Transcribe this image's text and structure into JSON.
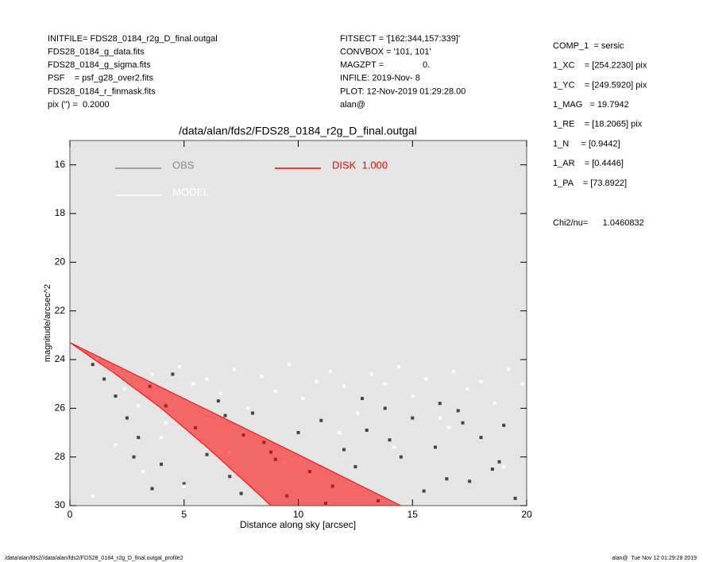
{
  "header": {
    "left": [
      "INITFILE= FDS28_0184_r2g_D_final.outgal",
      "FDS28_0184_g_data.fits",
      "FDS28_0184_g_sigma.fits",
      "PSF    = psf_g28_over2.fits",
      "FDS28_0184_r_finmask.fits",
      "pix (\") =  0.2000"
    ],
    "middle": [
      "FITSECT = '[162:344,157:339]'",
      "CONVBOX = '101, 101'",
      "MAGZPT =                0.",
      "INFILE: 2019-Nov- 8",
      "PLOT: 12-Nov-2019 01:29:28.00",
      "alan@"
    ],
    "right": [
      "COMP_1  = sersic",
      "1_XC    = [254.2230] pix",
      "1_YC    = [249.5920] pix",
      "1_MAG   = 19.7942",
      "1_RE    = [18.2065] pix",
      "1_N     = [0.9442]",
      "1_AR    = [0.4446]",
      "1_PA    = [73.8922]"
    ],
    "chi": "Chi2/nu=      1.0460832"
  },
  "footer": {
    "left": "/data/alan/fds2//data/alan/fds2/FDS28_0184_r2g_D_final.outgal_profile2",
    "right": "alan@  Tue Nov 12 01:29:28 2019"
  },
  "chart_data": {
    "type": "scatter",
    "title": "/data/alan/fds2/FDS28_0184_r2g_D_final.outgal",
    "xlabel": "Distance along sky [arcsec]",
    "ylabel": "magnitude/arcsec^2",
    "xlim": [
      0,
      20
    ],
    "xticks": [
      0,
      5,
      10,
      15,
      20
    ],
    "ylim": [
      30,
      15
    ],
    "yticks": [
      16,
      18,
      20,
      22,
      24,
      26,
      28,
      30
    ],
    "series": [
      {
        "name": "OBS",
        "color": "#444444",
        "legend_color": "#888888",
        "x": [
          1,
          1.5,
          2,
          2.5,
          3,
          3.5,
          4,
          4.5,
          5,
          5.5,
          6,
          6.5,
          7,
          7.5,
          8,
          8.5,
          9,
          9.5,
          10,
          10.5,
          11,
          11.5,
          12,
          12.5,
          13,
          13.5,
          14,
          14.5,
          15,
          15.5,
          16,
          16.5,
          17,
          17.5,
          18,
          18.5,
          19,
          19.5,
          2.8,
          4.2,
          6.8,
          8.8,
          11.2,
          13.8,
          16.2,
          18.8,
          3.6,
          7.6,
          12.8,
          17.2
        ],
        "values": [
          24.2,
          24.8,
          25.5,
          26.4,
          27.2,
          25.1,
          28.3,
          24.6,
          29.1,
          26.8,
          27.9,
          25.7,
          28.8,
          29.5,
          26.2,
          27.4,
          28.1,
          29.6,
          27.0,
          28.6,
          26.5,
          29.2,
          27.7,
          28.4,
          26.9,
          29.8,
          27.3,
          28.0,
          26.4,
          29.4,
          27.6,
          28.9,
          26.1,
          29.0,
          27.2,
          28.5,
          26.7,
          29.7,
          28.0,
          25.9,
          26.3,
          27.8,
          29.9,
          26.0,
          25.8,
          28.2,
          29.3,
          27.1,
          25.6,
          26.6
        ]
      },
      {
        "name": "MODEL",
        "color": "#ffffff",
        "legend_color": "#ffffff",
        "x": [
          0.5,
          1.2,
          1.8,
          2.4,
          3.0,
          3.6,
          4.2,
          4.8,
          5.4,
          6.0,
          6.6,
          7.2,
          7.8,
          8.4,
          9.0,
          9.6,
          10.2,
          10.8,
          11.4,
          12.0,
          12.6,
          13.2,
          13.8,
          14.4,
          15.0,
          15.6,
          16.2,
          16.8,
          17.4,
          18.0,
          18.6,
          19.2,
          19.8,
          2.0,
          3.2,
          5.0,
          7.0,
          9.4,
          11.8,
          14.2,
          16.6,
          19.0,
          1.0,
          4.0
        ],
        "values": [
          23.6,
          24.0,
          24.5,
          25.2,
          25.9,
          24.6,
          26.6,
          24.3,
          25.0,
          24.8,
          25.4,
          24.4,
          26.0,
          24.7,
          25.3,
          24.2,
          25.6,
          24.9,
          24.5,
          25.1,
          26.2,
          24.6,
          25.0,
          24.3,
          25.5,
          24.8,
          26.4,
          24.5,
          25.2,
          24.9,
          25.8,
          24.4,
          25.0,
          27.5,
          28.6,
          29.2,
          27.8,
          28.2,
          27.0,
          27.6,
          26.8,
          28.4,
          29.6,
          27.2
        ]
      },
      {
        "name": "DISK  1.000",
        "color": "#ff0000",
        "legend_color": "#ff0000",
        "type": "band",
        "upper": {
          "x": [
            0,
            5,
            10,
            14.5
          ],
          "values": [
            23.3,
            25.6,
            27.9,
            30.0
          ]
        },
        "lower": {
          "x": [
            0,
            2,
            4,
            6,
            8,
            8.8
          ],
          "values": [
            23.3,
            24.6,
            26.0,
            27.6,
            29.3,
            30.0
          ]
        }
      }
    ]
  }
}
